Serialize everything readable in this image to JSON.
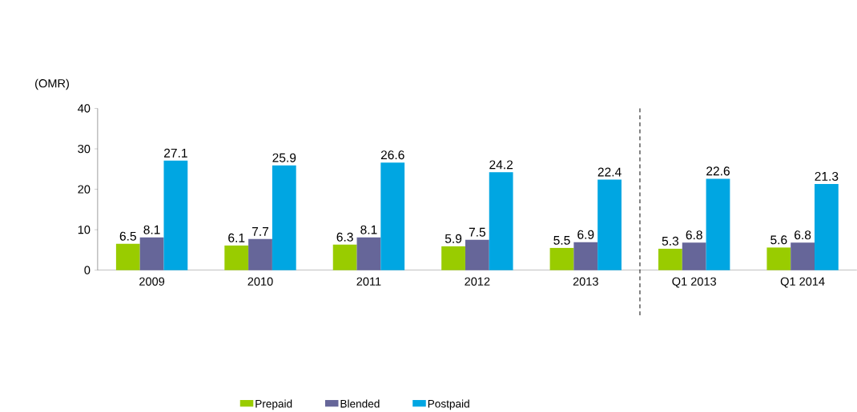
{
  "chart_data": {
    "type": "bar",
    "ylabel": "(OMR)",
    "categories": [
      "2009",
      "2010",
      "2011",
      "2012",
      "2013",
      "Q1 2013",
      "Q1 2014"
    ],
    "series": [
      {
        "name": "Prepaid",
        "color": "#99cc00",
        "values": [
          6.5,
          6.1,
          6.3,
          5.9,
          5.5,
          5.3,
          5.6
        ],
        "value_labels": [
          "6.5",
          "6.1",
          "6.3",
          "5.9",
          "5.5",
          "5.3",
          "5.6"
        ]
      },
      {
        "name": "Blended",
        "color": "#666699",
        "values": [
          8.1,
          7.7,
          8.1,
          7.5,
          6.9,
          6.8,
          6.8
        ],
        "value_labels": [
          "8.1",
          "7.7",
          "8.1",
          "7.5",
          "6.9",
          "6.8",
          "6.8"
        ]
      },
      {
        "name": "Postpaid",
        "color": "#00a6e2",
        "values": [
          27.1,
          25.9,
          26.6,
          24.2,
          22.4,
          22.6,
          21.3
        ],
        "value_labels": [
          "27.1",
          "25.9",
          "26.6",
          "24.2",
          "22.4",
          "22.6",
          "21.3"
        ]
      }
    ],
    "ylim": [
      0,
      40
    ],
    "yticks": [
      0,
      10,
      20,
      30,
      40
    ],
    "grid": false,
    "legend": "bottom"
  }
}
